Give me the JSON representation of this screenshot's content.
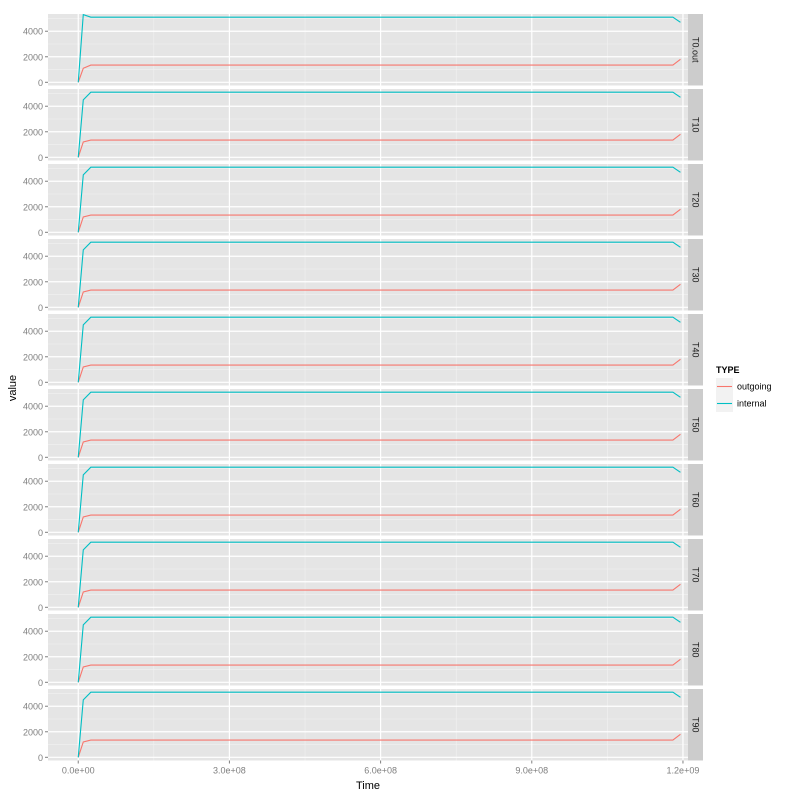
{
  "chart_data": {
    "type": "line",
    "xlabel": "Time",
    "ylabel": "value",
    "xlim": [
      -60000000,
      1210000000
    ],
    "ylim": [
      -250,
      5350
    ],
    "x_ticks": [
      0,
      300000000,
      600000000,
      900000000,
      1200000000
    ],
    "x_tick_labels": [
      "0.0e+00",
      "3.0e+08",
      "6.0e+08",
      "9.0e+08",
      "1.2e+09"
    ],
    "y_ticks": [
      0,
      2000,
      4000
    ],
    "y_tick_labels": [
      "0",
      "2000",
      "4000"
    ],
    "grid": true,
    "facet_direction": "rows",
    "legend": {
      "title": "TYPE",
      "position": "right"
    },
    "series": [
      {
        "name": "outgoing",
        "color": "#F8766D"
      },
      {
        "name": "internal",
        "color": "#00BFC4"
      }
    ],
    "facets": [
      {
        "label": "T0.out",
        "x": [
          0,
          10000000,
          25000000,
          1180000000,
          1195000000
        ],
        "series": {
          "outgoing": [
            0,
            1100,
            1350,
            1350,
            1800
          ],
          "internal": [
            0,
            5300,
            5100,
            5100,
            4700
          ]
        }
      },
      {
        "label": "T10",
        "x": [
          0,
          10000000,
          25000000,
          1180000000,
          1195000000
        ],
        "series": {
          "outgoing": [
            0,
            1200,
            1350,
            1350,
            1800
          ],
          "internal": [
            0,
            4500,
            5100,
            5100,
            4700
          ]
        }
      },
      {
        "label": "T20",
        "x": [
          0,
          10000000,
          25000000,
          1180000000,
          1195000000
        ],
        "series": {
          "outgoing": [
            0,
            1200,
            1350,
            1350,
            1800
          ],
          "internal": [
            0,
            4500,
            5100,
            5100,
            4700
          ]
        }
      },
      {
        "label": "T30",
        "x": [
          0,
          10000000,
          25000000,
          1180000000,
          1195000000
        ],
        "series": {
          "outgoing": [
            0,
            1200,
            1350,
            1350,
            1800
          ],
          "internal": [
            0,
            4500,
            5100,
            5100,
            4700
          ]
        }
      },
      {
        "label": "T40",
        "x": [
          0,
          10000000,
          25000000,
          1180000000,
          1195000000
        ],
        "series": {
          "outgoing": [
            0,
            1200,
            1350,
            1350,
            1800
          ],
          "internal": [
            0,
            4500,
            5100,
            5100,
            4700
          ]
        }
      },
      {
        "label": "T50",
        "x": [
          0,
          10000000,
          25000000,
          1180000000,
          1195000000
        ],
        "series": {
          "outgoing": [
            0,
            1200,
            1350,
            1350,
            1800
          ],
          "internal": [
            0,
            4500,
            5100,
            5100,
            4700
          ]
        }
      },
      {
        "label": "T60",
        "x": [
          0,
          10000000,
          25000000,
          1180000000,
          1195000000
        ],
        "series": {
          "outgoing": [
            0,
            1200,
            1350,
            1350,
            1800
          ],
          "internal": [
            0,
            4500,
            5100,
            5100,
            4700
          ]
        }
      },
      {
        "label": "T70",
        "x": [
          0,
          10000000,
          25000000,
          1180000000,
          1195000000
        ],
        "series": {
          "outgoing": [
            0,
            1200,
            1350,
            1350,
            1800
          ],
          "internal": [
            0,
            4500,
            5100,
            5100,
            4700
          ]
        }
      },
      {
        "label": "T80",
        "x": [
          0,
          10000000,
          25000000,
          1180000000,
          1195000000
        ],
        "series": {
          "outgoing": [
            0,
            1200,
            1350,
            1350,
            1800
          ],
          "internal": [
            0,
            4500,
            5100,
            5100,
            4700
          ]
        }
      },
      {
        "label": "T90",
        "x": [
          0,
          10000000,
          25000000,
          1180000000,
          1195000000
        ],
        "series": {
          "outgoing": [
            0,
            1200,
            1350,
            1350,
            1800
          ],
          "internal": [
            0,
            4500,
            5100,
            5100,
            4700
          ]
        }
      }
    ]
  }
}
